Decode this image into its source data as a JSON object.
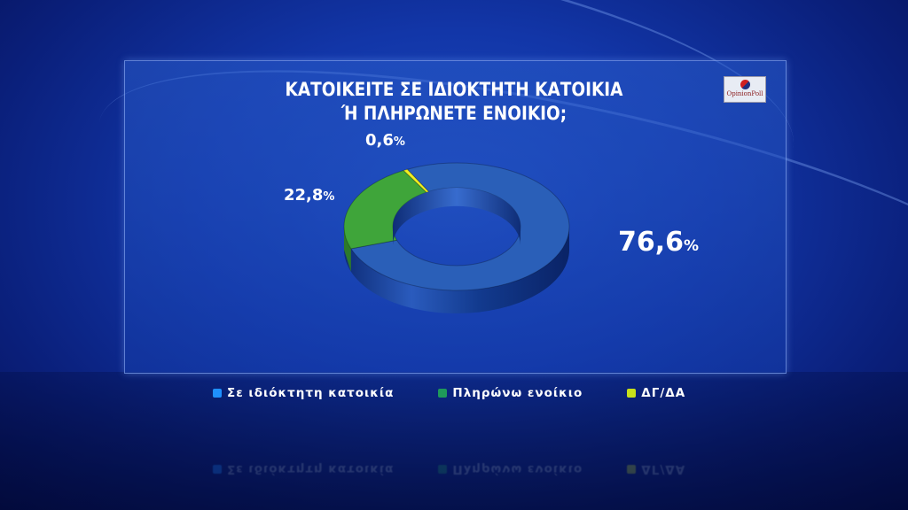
{
  "chart_data": {
    "type": "pie",
    "variant": "donut-3d",
    "title": "ΚΑΤΟΙΚΕΙΤΕ ΣΕ ΙΔΙΟΚΤΗΤΗ ΚΑΤΟΙΚΙΑ Ή ΠΛΗΡΩΝΕΤΕ ΕΝΟΙΚΙΟ;",
    "title_lines": [
      "ΚΑΤΟΙΚΕΙΤΕ ΣΕ ΙΔΙΟΚΤΗΤΗ ΚΑΤΟΙΚΙΑ",
      "Ή ΠΛΗΡΩΝΕΤΕ ΕΝΟΙΚΙΟ;"
    ],
    "unit": "%",
    "legend_position": "bottom",
    "slices": [
      {
        "name": "Σε ιδιόκτητη κατοικία",
        "value": 76.6,
        "label": "76,6",
        "color": "#2a5fb8",
        "legend_color": "#1e90ff"
      },
      {
        "name": "Πληρώνω ενοίκιο",
        "value": 22.8,
        "label": "22,8",
        "color": "#3fa53a",
        "legend_color": "#1f9a5a"
      },
      {
        "name": "ΔΓ/ΔΑ",
        "value": 0.6,
        "label": "0,6",
        "color": "#f0f020",
        "legend_color": "#c8e01a"
      }
    ]
  },
  "logo": {
    "text": "OpinionPoll"
  }
}
